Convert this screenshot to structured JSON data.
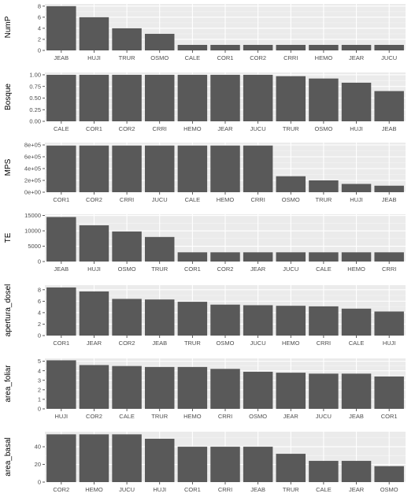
{
  "colors": {
    "panel_bg": "#ebebeb",
    "grid_major": "#ffffff",
    "grid_minor": "#f5f5f5",
    "bar": "#595959",
    "text": "#4d4d4d",
    "axis_title": "#000000"
  },
  "chart_data": [
    {
      "type": "bar",
      "ylabel": "NumP",
      "ylim": [
        0,
        8.4
      ],
      "ticks": [
        0,
        2,
        4,
        6,
        8
      ],
      "tick_labels": [
        "0",
        "2",
        "4",
        "6",
        "8"
      ],
      "categories": [
        "JEAB",
        "HUJI",
        "TRUR",
        "OSMO",
        "CALE",
        "COR1",
        "COR2",
        "CRRI",
        "HEMO",
        "JEAR",
        "JUCU"
      ],
      "values": [
        8,
        6,
        4,
        3,
        1,
        1,
        1,
        1,
        1,
        1,
        1
      ],
      "grid": true
    },
    {
      "type": "bar",
      "ylabel": "Bosque",
      "ylim": [
        0,
        1.05
      ],
      "ticks": [
        0,
        0.25,
        0.5,
        0.75,
        1
      ],
      "tick_labels": [
        "0.00",
        "0.25",
        "0.50",
        "0.75",
        "1.00"
      ],
      "categories": [
        "CALE",
        "COR1",
        "COR2",
        "CRRI",
        "HEMO",
        "JEAR",
        "JUCU",
        "TRUR",
        "OSMO",
        "HUJI",
        "JEAB"
      ],
      "values": [
        1,
        1,
        1,
        1,
        1,
        1,
        1,
        0.97,
        0.92,
        0.83,
        0.65
      ],
      "grid": true
    },
    {
      "type": "bar",
      "ylabel": "MPS",
      "ylim": [
        0,
        840000
      ],
      "ticks": [
        0,
        200000,
        400000,
        600000,
        800000
      ],
      "tick_labels": [
        "0e+00",
        "2e+05",
        "4e+05",
        "6e+05",
        "8e+05"
      ],
      "categories": [
        "COR1",
        "COR2",
        "CRRI",
        "JUCU",
        "CALE",
        "HEMO",
        "CRRI",
        "OSMO",
        "TRUR",
        "HUJI",
        "JEAB"
      ],
      "values": [
        790000,
        790000,
        790000,
        790000,
        790000,
        790000,
        790000,
        270000,
        200000,
        140000,
        110000
      ],
      "grid": true
    },
    {
      "type": "bar",
      "ylabel": "TE",
      "ylim": [
        0,
        15400
      ],
      "ticks": [
        0,
        5000,
        10000,
        15000
      ],
      "tick_labels": [
        "0",
        "5000",
        "10000",
        "15000"
      ],
      "categories": [
        "JEAB",
        "HUJI",
        "OSMO",
        "TRUR",
        "COR1",
        "COR2",
        "JEAR",
        "JUCU",
        "CALE",
        "HEMO",
        "CRRI"
      ],
      "values": [
        14500,
        11800,
        9800,
        8000,
        3000,
        3000,
        3000,
        3000,
        3000,
        3000,
        3000
      ],
      "grid": true
    },
    {
      "type": "bar",
      "ylabel": "apertura_dosel",
      "ylim": [
        0,
        8.8
      ],
      "ticks": [
        0,
        2,
        4,
        6,
        8
      ],
      "tick_labels": [
        "0",
        "2",
        "4",
        "6",
        "8"
      ],
      "categories": [
        "COR1",
        "JEAR",
        "COR2",
        "JEAB",
        "TRUR",
        "OSMO",
        "JUCU",
        "HEMO",
        "CRRI",
        "CALE",
        "HUJI"
      ],
      "values": [
        8.4,
        7.7,
        6.4,
        6.3,
        5.9,
        5.4,
        5.3,
        5.2,
        5.1,
        4.7,
        4.2
      ],
      "grid": true
    },
    {
      "type": "bar",
      "ylabel": "area_foliar",
      "ylim": [
        0,
        5.3
      ],
      "ticks": [
        0,
        1,
        2,
        3,
        4,
        5
      ],
      "tick_labels": [
        "0",
        "1",
        "2",
        "3",
        "4",
        "5"
      ],
      "categories": [
        "HUJI",
        "COR2",
        "CALE",
        "TRUR",
        "HEMO",
        "CRRI",
        "OSMO",
        "JEAR",
        "JUCU",
        "JEAB",
        "COR1"
      ],
      "values": [
        5.1,
        4.6,
        4.5,
        4.4,
        4.4,
        4.2,
        3.9,
        3.8,
        3.7,
        3.7,
        3.4
      ],
      "grid": true
    },
    {
      "type": "bar",
      "ylabel": "area_basal",
      "ylim": [
        0,
        57
      ],
      "ticks": [
        0,
        20,
        40
      ],
      "tick_labels": [
        "0",
        "20",
        "40"
      ],
      "categories": [
        "COR2",
        "HEMO",
        "JUCU",
        "HUJI",
        "COR1",
        "CRRI",
        "JEAB",
        "TRUR",
        "CALE",
        "JEAR",
        "OSMO"
      ],
      "values": [
        54,
        54,
        54,
        49,
        40,
        40,
        40,
        32,
        24,
        24,
        18
      ],
      "grid": true
    }
  ]
}
